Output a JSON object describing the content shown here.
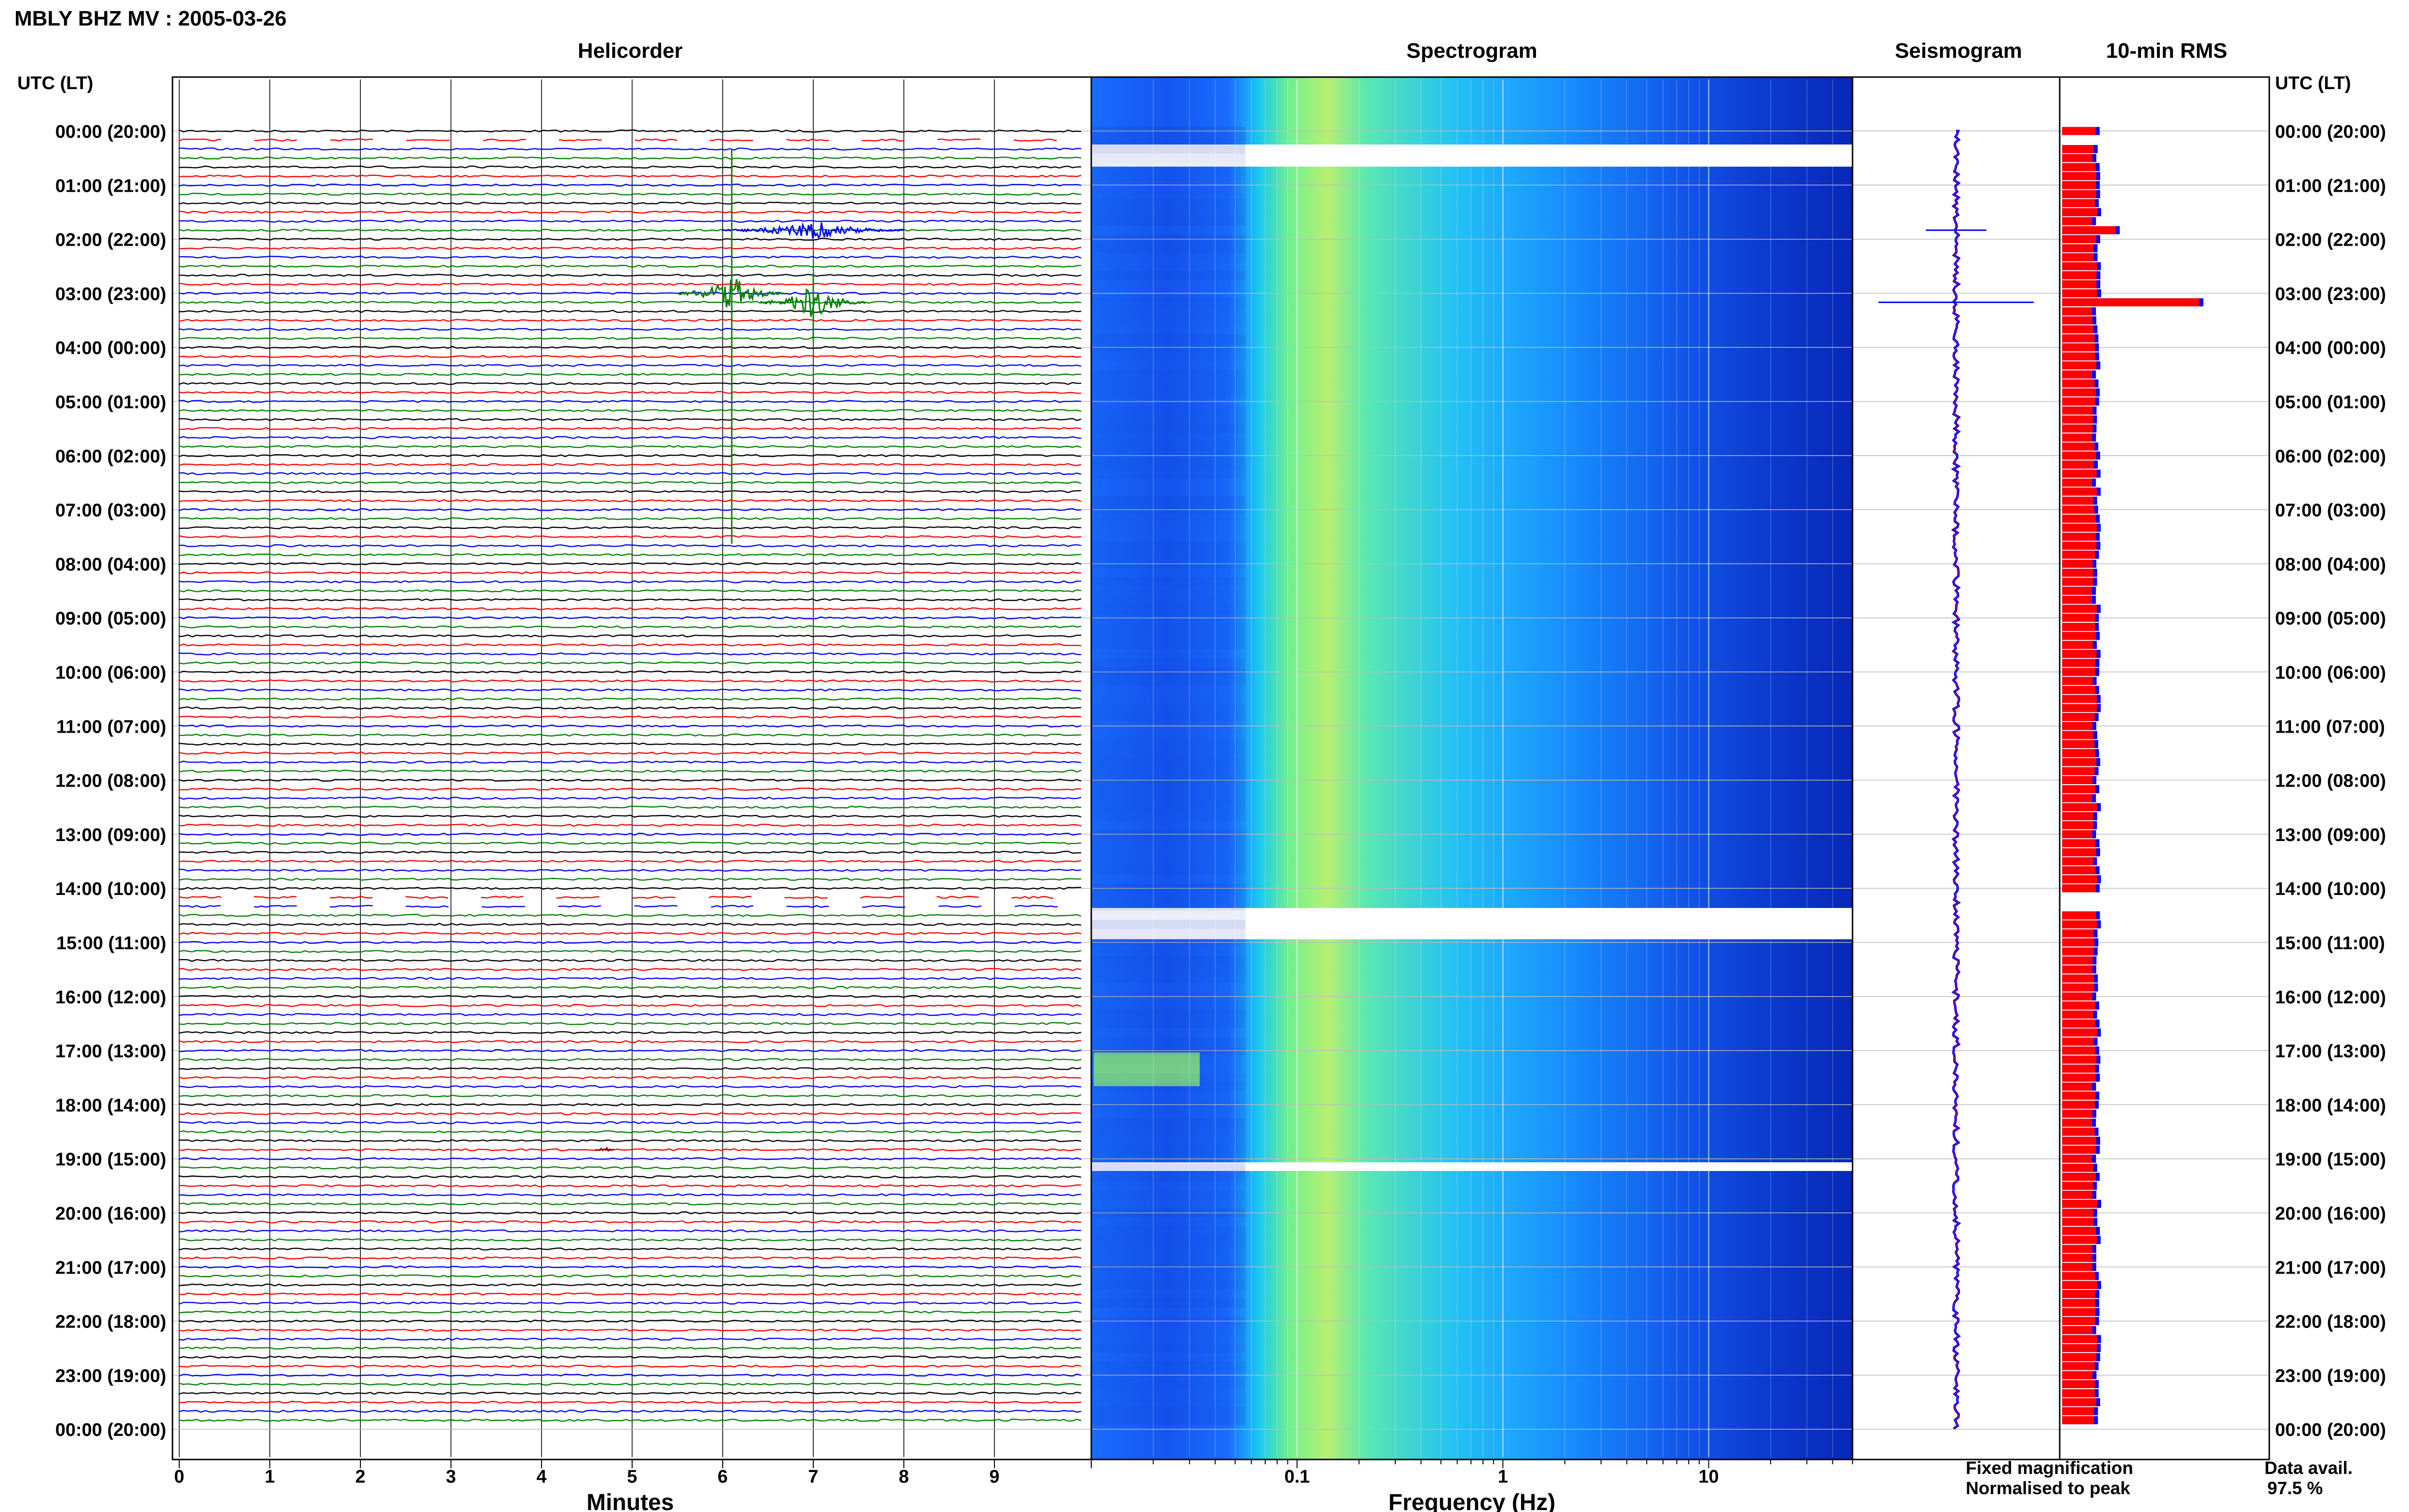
{
  "page_title": "MBLY BHZ MV : 2005-03-26",
  "panels": {
    "helicorder": "Helicorder",
    "spectrogram": "Spectrogram",
    "seismogram": "Seismogram",
    "rms": "10-min RMS"
  },
  "time_axis_label": "UTC (LT)",
  "hour_labels": [
    "00:00 (20:00)",
    "01:00 (21:00)",
    "02:00 (22:00)",
    "03:00 (23:00)",
    "04:00 (00:00)",
    "05:00 (01:00)",
    "06:00 (02:00)",
    "07:00 (03:00)",
    "08:00 (04:00)",
    "09:00 (05:00)",
    "10:00 (06:00)",
    "11:00 (07:00)",
    "12:00 (08:00)",
    "13:00 (09:00)",
    "14:00 (10:00)",
    "15:00 (11:00)",
    "16:00 (12:00)",
    "17:00 (13:00)",
    "18:00 (14:00)",
    "19:00 (15:00)",
    "20:00 (16:00)",
    "21:00 (17:00)",
    "22:00 (18:00)",
    "23:00 (19:00)",
    "00:00 (20:00)"
  ],
  "minute_ticks": [
    "0",
    "1",
    "2",
    "3",
    "4",
    "5",
    "6",
    "7",
    "8",
    "9"
  ],
  "minutes_label": "Minutes",
  "freq_ticks": [
    "0.1",
    "1",
    "10"
  ],
  "freq_label": "Frequency (Hz)",
  "legend": {
    "fixed": "Fixed magnification",
    "fixed_color": "#0000ff",
    "normalised": "Normalised to peak",
    "normalised_color": "#ff0000"
  },
  "availability": {
    "label": "Data avail.",
    "value": "97.5 %"
  },
  "chart_data": {
    "type": "heatmap",
    "station": "MBLY",
    "channel": "BHZ",
    "network": "MV",
    "date": "2005-03-26",
    "trace_colors": [
      "#000000",
      "#ff0000",
      "#0000ff",
      "#008000"
    ],
    "time_range_utc": [
      "00:00",
      "24:00"
    ],
    "helicorder": {
      "x_unit": "minutes",
      "xlim": [
        0,
        10
      ],
      "row_minutes": 10
    },
    "spectrogram": {
      "x_unit": "Hz",
      "x_scale": "log",
      "xlim": [
        0.01,
        50
      ]
    },
    "data_gaps_utc": [
      [
        "00:10",
        "00:20"
      ],
      [
        "14:10",
        "14:30"
      ],
      [
        "19:00",
        "19:02"
      ]
    ],
    "events": [
      {
        "time_utc": "01:50",
        "minute": 7.0
      },
      {
        "time_utc": "03:00",
        "minute": 6.1
      },
      {
        "time_utc": "03:10",
        "minute": 7.0
      },
      {
        "time_utc": "18:50",
        "minute": 4.7
      }
    ],
    "rms_series": [
      {
        "name": "Fixed magnification",
        "color": "#0000ff"
      },
      {
        "name": "Normalised to peak",
        "color": "#ff0000"
      }
    ],
    "rms_peaks_relative": [
      {
        "time_utc": "01:50",
        "value": 1.8
      },
      {
        "time_utc": "03:10",
        "value": 4.6
      }
    ],
    "data_availability_percent": 97.5
  }
}
